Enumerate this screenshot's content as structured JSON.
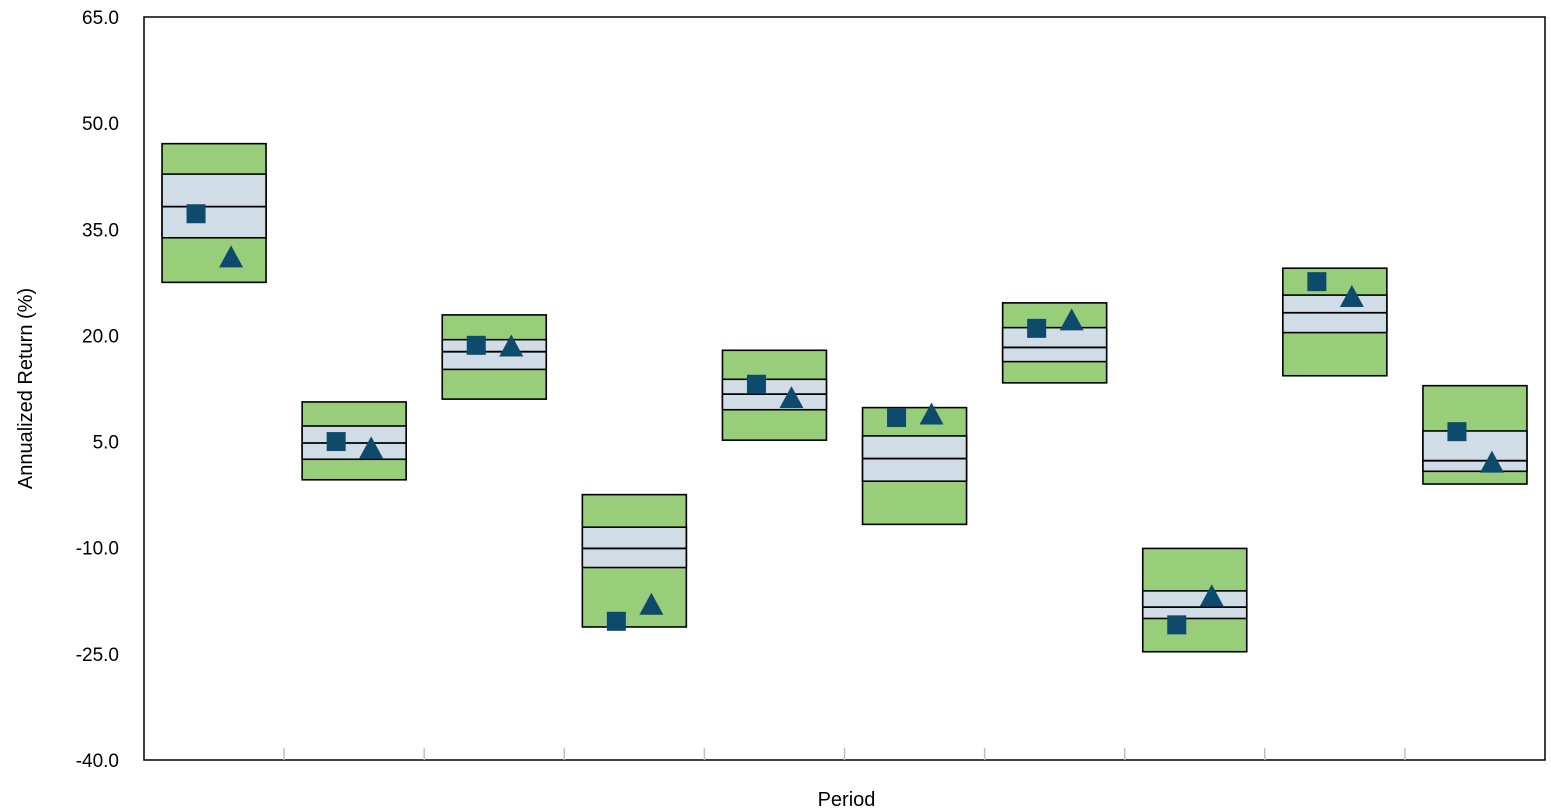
{
  "chart_data": {
    "type": "floating-bar",
    "title": "",
    "xlabel": "Period",
    "ylabel": "Annualized Return (%)",
    "ylim": [
      -40,
      65
    ],
    "yticks": [
      65.0,
      50.0,
      35.0,
      20.0,
      5.0,
      -10.0,
      -25.0,
      -40.0
    ],
    "ytick_labels": [
      "65.0",
      "50.0",
      "35.0",
      "20.0",
      "5.0",
      "-10.0",
      "-25.0",
      "-40.0"
    ],
    "category_labels_visible": false,
    "periods": [
      {
        "p5": 27.5,
        "p25": 33.8,
        "median": 38.2,
        "p75": 42.8,
        "p95": 47.1,
        "square": 37.2,
        "triangle": 30.8
      },
      {
        "p5": -0.4,
        "p25": 2.5,
        "median": 4.8,
        "p75": 7.2,
        "p95": 10.6,
        "square": 5.0,
        "triangle": 3.8
      },
      {
        "p5": 11.0,
        "p25": 15.2,
        "median": 17.7,
        "p75": 19.4,
        "p95": 22.9,
        "square": 18.6,
        "triangle": 18.2
      },
      {
        "p5": -21.2,
        "p25": -12.8,
        "median": -10.1,
        "p75": -7.1,
        "p95": -2.5,
        "square": -20.4,
        "triangle": -18.3
      },
      {
        "p5": 5.2,
        "p25": 9.5,
        "median": 11.7,
        "p75": 13.8,
        "p95": 17.9,
        "square": 13.1,
        "triangle": 10.9
      },
      {
        "p5": -6.7,
        "p25": -0.6,
        "median": 2.6,
        "p75": 5.8,
        "p95": 9.8,
        "square": 8.4,
        "triangle": 8.6
      },
      {
        "p5": 13.3,
        "p25": 16.3,
        "median": 18.3,
        "p75": 21.1,
        "p95": 24.6,
        "square": 21.0,
        "triangle": 21.9
      },
      {
        "p5": -24.7,
        "p25": -20.0,
        "median": -18.4,
        "p75": -16.1,
        "p95": -10.1,
        "square": -20.9,
        "triangle": -17.1
      },
      {
        "p5": 14.3,
        "p25": 20.4,
        "median": 23.2,
        "p75": 25.7,
        "p95": 29.5,
        "square": 27.6,
        "triangle": 25.2
      },
      {
        "p5": -1.0,
        "p25": 0.8,
        "median": 2.3,
        "p75": 6.5,
        "p95": 12.9,
        "square": 6.4,
        "triangle": 1.8
      }
    ],
    "colors": {
      "outer_band": "#98cd7a",
      "inner_band": "#d1dde6",
      "edge": "#000000",
      "marker": "#0d4a6b",
      "frame": "#000000",
      "tick_mark": "#bfbfbf"
    },
    "markers": {
      "square": "square-marker",
      "triangle": "triangle-marker"
    }
  }
}
